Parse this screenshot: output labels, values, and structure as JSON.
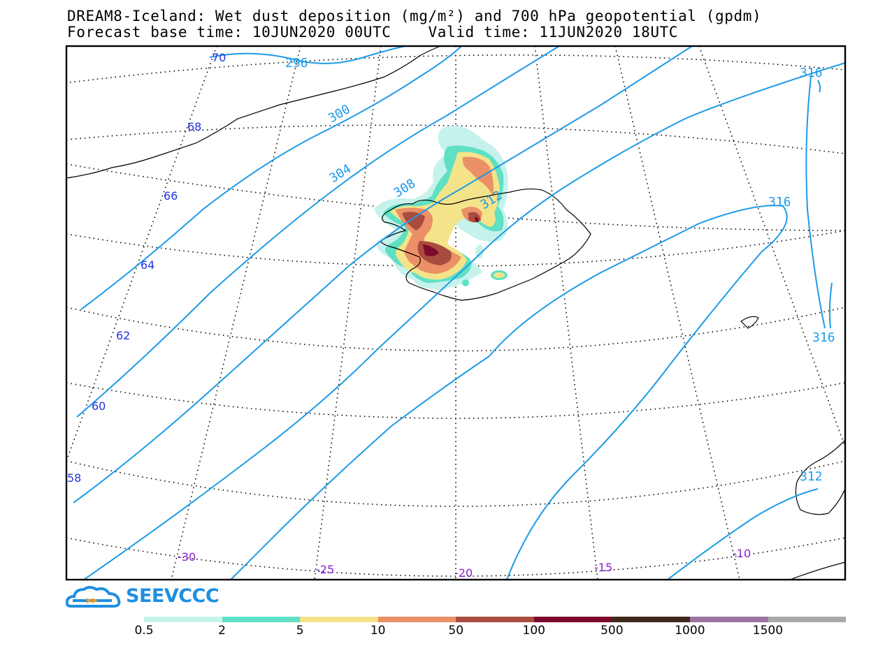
{
  "title": {
    "line1": "DREAM8-Iceland: Wet dust deposition (mg/m²) and 700 hPa geopotential (gpdm)",
    "line2": "Forecast base time: 10JUN2020 00UTC    Valid time: 11JUN2020 18UTC"
  },
  "map": {
    "lat_labels": [
      "70",
      "68",
      "66",
      "64",
      "62",
      "60",
      "58"
    ],
    "lon_labels": [
      "-30",
      "-25",
      "-20",
      "-15",
      "-10"
    ],
    "contour_labels": [
      "296",
      "300",
      "304",
      "308",
      "312",
      "316",
      "316",
      "316",
      "312"
    ],
    "colors": {
      "contour": "#1e9be6",
      "lat_label": "#2233dd",
      "lon_label": "#8a1fd1",
      "coast": "#000000",
      "grid": "#000000"
    }
  },
  "logo": {
    "text": "SEEVCCC",
    "color": "#1e8fe0"
  },
  "legend": {
    "colors": [
      "#c6f2ec",
      "#5fe0c4",
      "#f5e38a",
      "#eb9067",
      "#a94c3f",
      "#7d0a2d",
      "#3f2a1c",
      "#9a75a0",
      "#aaaaaa"
    ],
    "labels": [
      "0.5",
      "2",
      "5",
      "10",
      "50",
      "100",
      "500",
      "1000",
      "1500"
    ]
  }
}
